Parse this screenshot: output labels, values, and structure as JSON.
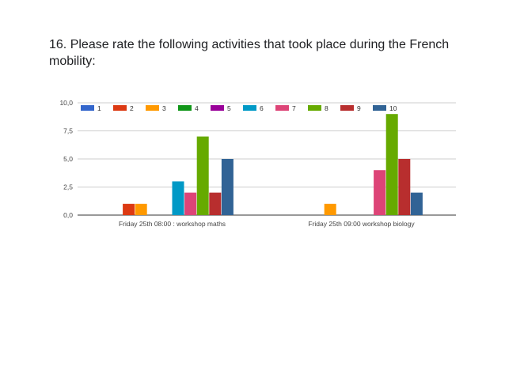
{
  "question": {
    "title": "16. Please rate the following activities that took place during the French mobility:"
  },
  "chart_data": {
    "type": "bar",
    "title": "",
    "xlabel": "",
    "ylabel": "",
    "ylim": [
      0,
      10
    ],
    "yticks": [
      "0,0",
      "2,5",
      "5,0",
      "7,5",
      "10,0"
    ],
    "grid": true,
    "legend_position": "top",
    "categories": [
      "Friday 25th 08:00 : workshop maths",
      "Friday 25th 09:00 workshop biology"
    ],
    "series": [
      {
        "name": "1",
        "color": "#3366cc",
        "values": [
          0,
          0
        ]
      },
      {
        "name": "2",
        "color": "#dc3912",
        "values": [
          1,
          0
        ]
      },
      {
        "name": "3",
        "color": "#ff9900",
        "values": [
          1,
          1
        ]
      },
      {
        "name": "4",
        "color": "#109618",
        "values": [
          0,
          0
        ]
      },
      {
        "name": "5",
        "color": "#990099",
        "values": [
          0,
          0
        ]
      },
      {
        "name": "6",
        "color": "#0099c6",
        "values": [
          3,
          0
        ]
      },
      {
        "name": "7",
        "color": "#dd4477",
        "values": [
          2,
          4
        ]
      },
      {
        "name": "8",
        "color": "#66aa00",
        "values": [
          7,
          9
        ]
      },
      {
        "name": "9",
        "color": "#b82e2e",
        "values": [
          2,
          5
        ]
      },
      {
        "name": "10",
        "color": "#316395",
        "values": [
          5,
          2
        ]
      }
    ]
  }
}
